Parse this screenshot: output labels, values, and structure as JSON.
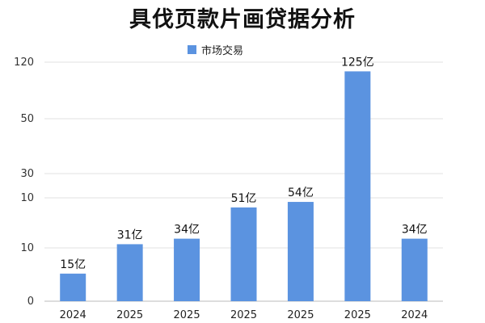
{
  "chart_data": {
    "type": "bar",
    "title": "具伐页款片画贷据分析",
    "legend": {
      "label": "市场交易",
      "placement": "top-center"
    },
    "categories": [
      "2024",
      "2025",
      "2025",
      "2025",
      "2025",
      "2025",
      "2024"
    ],
    "series": [
      {
        "name": "市场交易",
        "values": [
          15,
          31,
          34,
          51,
          54,
          125,
          34
        ],
        "data_labels": [
          "15亿",
          "31亿",
          "34亿",
          "51亿",
          "54亿",
          "125亿",
          "34亿"
        ]
      }
    ],
    "y_tick_labels": [
      "0",
      "10",
      "10",
      "30",
      "50",
      "120"
    ],
    "xlabel": "",
    "ylabel": "",
    "grid": true,
    "colors": {
      "bar": "#5b93e0",
      "grid": "#e2e2e2",
      "axis": "#bbbbbb"
    }
  }
}
